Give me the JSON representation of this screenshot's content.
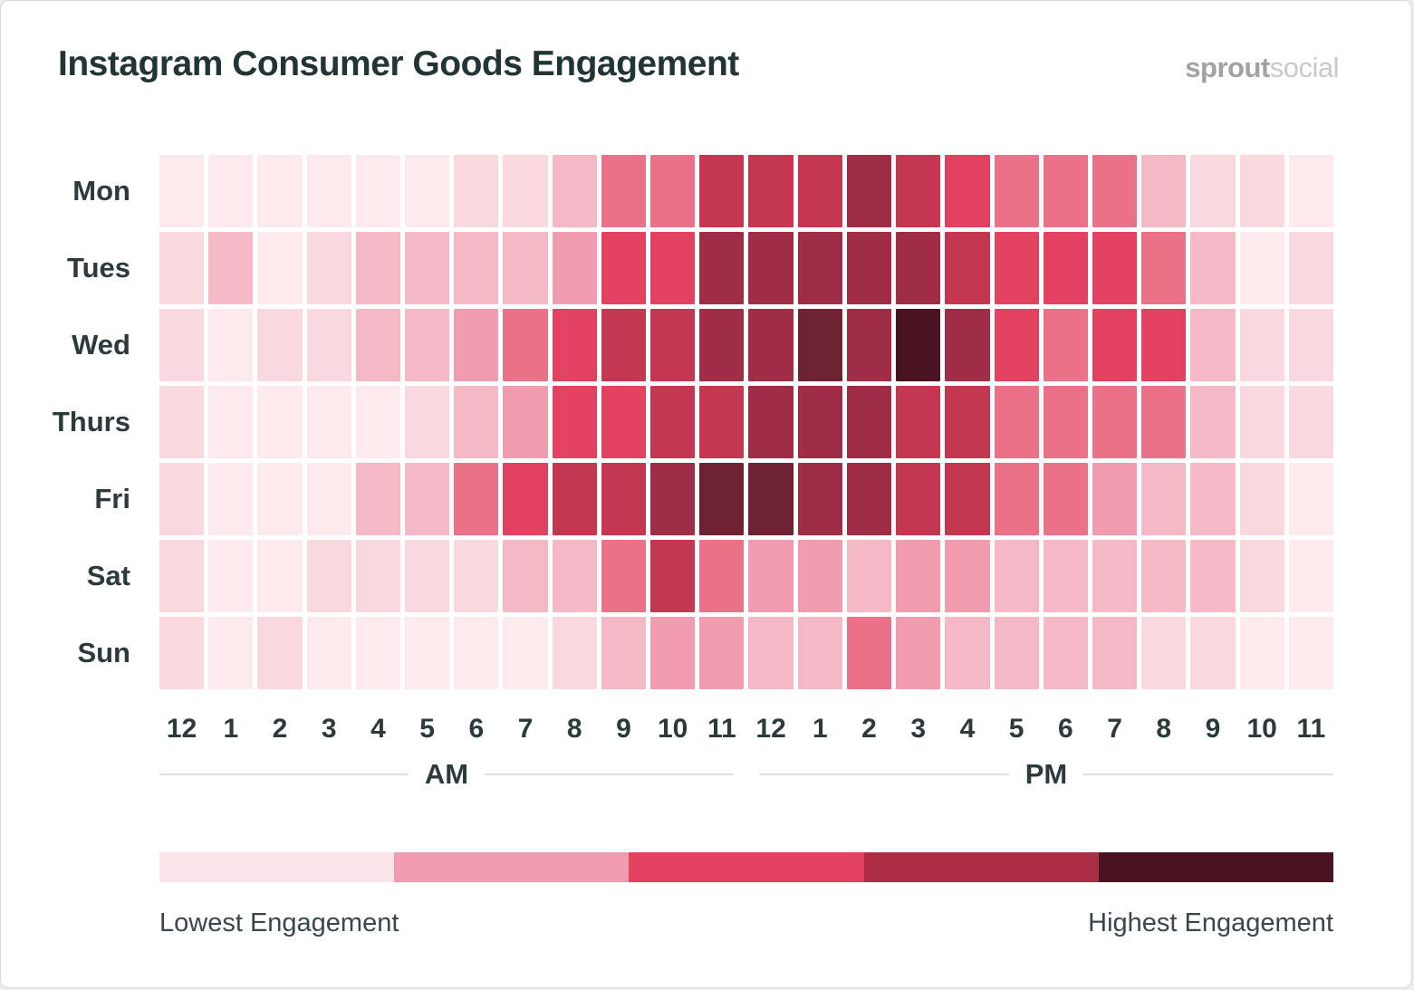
{
  "header": {
    "title": "Instagram Consumer Goods Engagement",
    "logo": {
      "bold": "sprout",
      "light": "social"
    }
  },
  "chart_data": {
    "type": "heatmap",
    "title": "Instagram Consumer Goods Engagement",
    "x_axis": {
      "hour_labels": [
        "12",
        "1",
        "2",
        "3",
        "4",
        "5",
        "6",
        "7",
        "8",
        "9",
        "10",
        "11",
        "12",
        "1",
        "2",
        "3",
        "4",
        "5",
        "6",
        "7",
        "8",
        "9",
        "10",
        "11"
      ],
      "period_labels": {
        "am": "AM",
        "pm": "PM"
      }
    },
    "y_axis": {
      "day_labels": [
        "Mon",
        "Tues",
        "Wed",
        "Thurs",
        "Fri",
        "Sat",
        "Sun"
      ]
    },
    "value_scale": {
      "description": "ordinal engagement level, 0 = lowest to 9 = highest",
      "palette": [
        "#fceaee",
        "#f9d8e0",
        "#f5b8c5",
        "#f09cae",
        "#ea7187",
        "#e2425f",
        "#c53750",
        "#a12c45",
        "#6f2232",
        "#4a1322"
      ]
    },
    "rows": [
      {
        "day": "Mon",
        "levels": [
          0,
          0,
          0,
          0,
          0,
          0,
          1,
          1,
          2,
          4,
          4,
          6,
          6,
          6,
          7,
          6,
          5,
          4,
          4,
          4,
          2,
          1,
          1,
          0
        ]
      },
      {
        "day": "Tues",
        "levels": [
          1,
          2,
          0,
          1,
          2,
          2,
          2,
          2,
          3,
          5,
          5,
          7,
          7,
          7,
          7,
          7,
          6,
          5,
          5,
          5,
          4,
          2,
          0,
          1
        ]
      },
      {
        "day": "Wed",
        "levels": [
          1,
          0,
          1,
          1,
          2,
          2,
          3,
          4,
          5,
          6,
          6,
          7,
          7,
          8,
          7,
          9,
          7,
          5,
          4,
          5,
          5,
          2,
          1,
          1
        ]
      },
      {
        "day": "Thurs",
        "levels": [
          1,
          0,
          0,
          0,
          0,
          1,
          2,
          3,
          5,
          5,
          6,
          6,
          7,
          7,
          7,
          6,
          6,
          4,
          4,
          4,
          4,
          2,
          1,
          1
        ]
      },
      {
        "day": "Fri",
        "levels": [
          1,
          0,
          0,
          0,
          2,
          2,
          4,
          5,
          6,
          6,
          7,
          8,
          8,
          7,
          7,
          6,
          6,
          4,
          4,
          3,
          2,
          2,
          1,
          0
        ]
      },
      {
        "day": "Sat",
        "levels": [
          1,
          0,
          0,
          1,
          1,
          1,
          1,
          2,
          2,
          4,
          6,
          4,
          3,
          3,
          2,
          3,
          3,
          2,
          2,
          2,
          2,
          2,
          1,
          0
        ]
      },
      {
        "day": "Sun",
        "levels": [
          1,
          0,
          1,
          0,
          0,
          0,
          0,
          0,
          1,
          2,
          3,
          3,
          2,
          2,
          4,
          3,
          2,
          2,
          2,
          2,
          1,
          1,
          0,
          0
        ]
      }
    ],
    "legend": {
      "colors": [
        "#fbe5ea",
        "#f09cae",
        "#e2425f",
        "#ac2d46",
        "#4a1322"
      ],
      "lowest_label": "Lowest Engagement",
      "highest_label": "Highest Engagement"
    }
  }
}
